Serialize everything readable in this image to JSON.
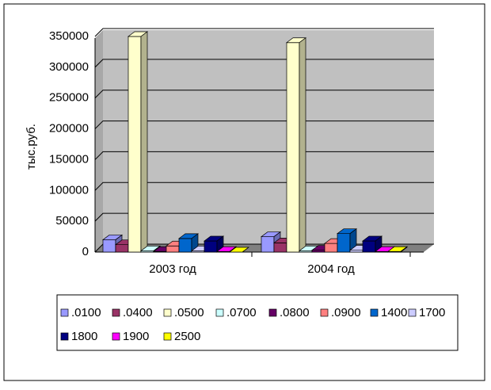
{
  "chart_data": {
    "type": "bar3d",
    "y_label": "тыс.руб.",
    "categories": [
      "2003 год",
      "2004 год"
    ],
    "ylim": [
      0,
      350000
    ],
    "yticks": [
      0,
      50000,
      100000,
      150000,
      200000,
      250000,
      300000,
      350000
    ],
    "grid": true,
    "series": [
      {
        "name": ".0100",
        "color": "#9999FF",
        "values": [
          20000,
          25000
        ]
      },
      {
        "name": ".0400",
        "color": "#993366",
        "values": [
          12000,
          15000
        ]
      },
      {
        "name": ".0500",
        "color": "#FFFFCC",
        "values": [
          350000,
          340000
        ]
      },
      {
        "name": ".0700",
        "color": "#CCFFFF",
        "values": [
          2000,
          2000
        ]
      },
      {
        "name": ".0800",
        "color": "#660066",
        "values": [
          1000,
          3000
        ]
      },
      {
        "name": ".0900",
        "color": "#FF8080",
        "values": [
          10000,
          14000
        ]
      },
      {
        "name": "1400",
        "color": "#0066CC",
        "values": [
          22000,
          30000
        ]
      },
      {
        "name": "1700",
        "color": "#CCCCFF",
        "values": [
          2000,
          3000
        ]
      },
      {
        "name": "1800",
        "color": "#000080",
        "values": [
          18000,
          18000
        ]
      },
      {
        "name": "1900",
        "color": "#FF00FF",
        "values": [
          1000,
          1000
        ]
      },
      {
        "name": "2500",
        "color": "#FFFF00",
        "values": [
          0,
          1000
        ]
      }
    ]
  }
}
